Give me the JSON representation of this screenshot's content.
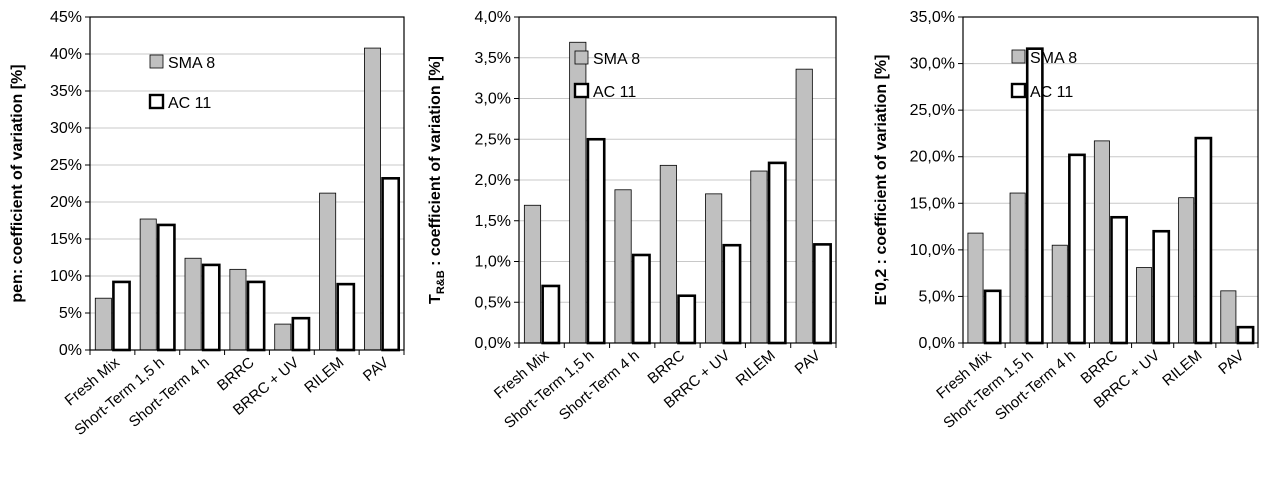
{
  "figure": {
    "colors": {
      "sma": "#c0c0c0",
      "ac": "#ffffff",
      "edge": "#000000",
      "grid": "#c8c8c8"
    }
  },
  "chart_data": [
    {
      "type": "bar",
      "categories": [
        "Fresh Mix",
        "Short-Term 1,5 h",
        "Short-Term 4 h",
        "BRRC",
        "BRRC + UV",
        "RILEM",
        "PAV"
      ],
      "series": [
        {
          "name": "SMA 8",
          "values": [
            7.0,
            17.7,
            12.4,
            10.9,
            3.5,
            21.2,
            40.8
          ]
        },
        {
          "name": "AC 11",
          "values": [
            9.2,
            16.9,
            11.5,
            9.2,
            4.3,
            8.9,
            23.2
          ]
        }
      ],
      "ylabel": "pen: coefficient of variation [%]",
      "ylabel_parts": [],
      "ylim": [
        0,
        45
      ],
      "yticks": [
        0,
        5,
        10,
        15,
        20,
        25,
        30,
        35,
        40,
        45
      ],
      "ytick_labels": [
        "0%",
        "5%",
        "10%",
        "15%",
        "20%",
        "25%",
        "30%",
        "35%",
        "40%",
        "45%"
      ],
      "grid": true,
      "legend": "top-center"
    },
    {
      "type": "bar",
      "categories": [
        "Fresh Mix",
        "Short-Term 1,5 h",
        "Short-Term 4 h",
        "BRRC",
        "BRRC + UV",
        "RILEM",
        "PAV"
      ],
      "series": [
        {
          "name": "SMA 8",
          "values": [
            1.69,
            3.69,
            1.88,
            2.18,
            1.83,
            2.11,
            3.36
          ]
        },
        {
          "name": "AC 11",
          "values": [
            0.7,
            2.5,
            1.08,
            0.58,
            1.2,
            2.21,
            1.21
          ]
        }
      ],
      "ylabel": "",
      "ylabel_parts": [
        "T",
        "R&B",
        " : coefficient of variation [%]"
      ],
      "ylim": [
        0,
        4
      ],
      "yticks": [
        0,
        0.5,
        1,
        1.5,
        2,
        2.5,
        3,
        3.5,
        4
      ],
      "ytick_labels": [
        "0,0%",
        "0,5%",
        "1,0%",
        "1,5%",
        "2,0%",
        "2,5%",
        "3,0%",
        "3,5%",
        "4,0%"
      ],
      "grid": true,
      "legend": "top-center"
    },
    {
      "type": "bar",
      "categories": [
        "Fresh Mix",
        "Short-Term 1,5 h",
        "Short-Term 4 h",
        "BRRC",
        "BRRC + UV",
        "RILEM",
        "PAV"
      ],
      "series": [
        {
          "name": "SMA 8",
          "values": [
            11.8,
            16.1,
            10.5,
            21.7,
            8.1,
            15.6,
            5.6
          ]
        },
        {
          "name": "AC 11",
          "values": [
            5.6,
            31.6,
            20.2,
            13.5,
            12.0,
            22.0,
            1.7
          ]
        }
      ],
      "ylabel": "E'0,2 : coefficient of variation [%]",
      "ylabel_parts": [],
      "ylim": [
        0,
        35
      ],
      "yticks": [
        0,
        5,
        10,
        15,
        20,
        25,
        30,
        35
      ],
      "ytick_labels": [
        "0,0%",
        "5,0%",
        "10,0%",
        "15,0%",
        "20,0%",
        "25,0%",
        "30,0%",
        "35,0%"
      ],
      "grid": true,
      "legend": "top-center"
    }
  ]
}
